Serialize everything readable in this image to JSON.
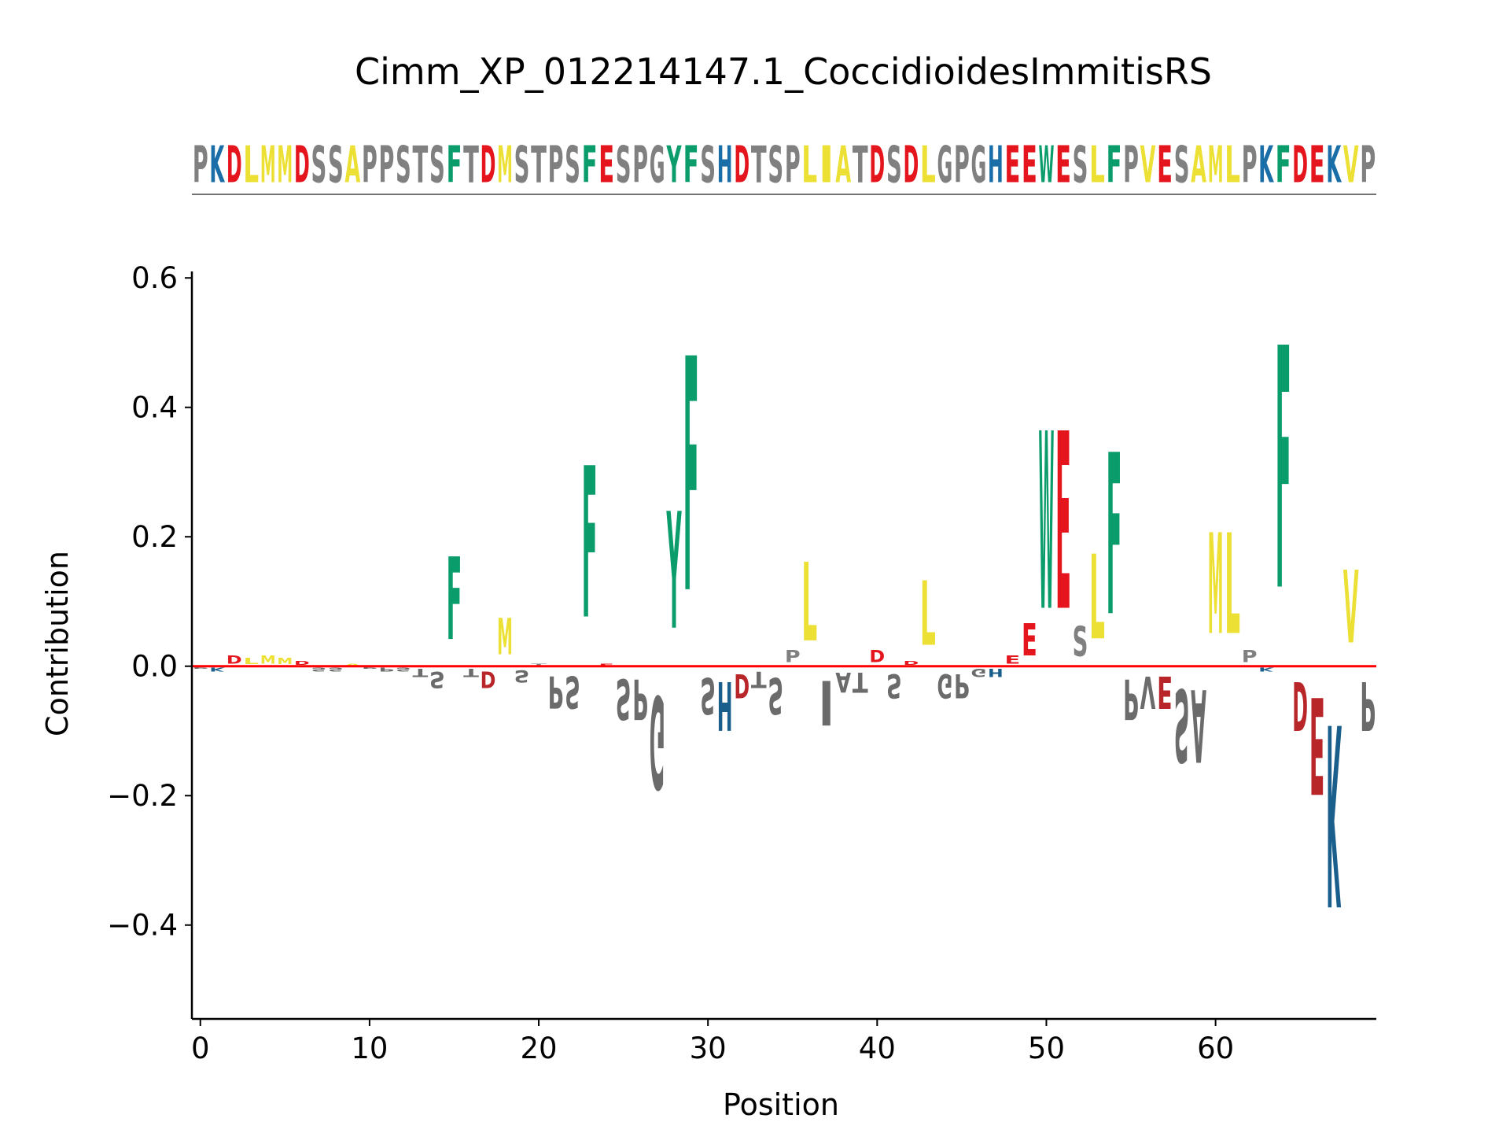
{
  "colors": {
    "D": "#e4151d",
    "E": "#e4151d",
    "K": "#1a6ea8",
    "H": "#1a6ea8",
    "R": "#1a6ea8",
    "F": "#0b9c6c",
    "W": "#0b9c6c",
    "Y": "#0b9c6c",
    "L": "#ede035",
    "M": "#ede035",
    "I": "#ede035",
    "V": "#ede035",
    "A": "#ede035",
    "default": "#808080",
    "negative_D": "#b8262a",
    "negative_E": "#b8262a",
    "negative_K": "#1a5f8c",
    "negative_H": "#1a5f8c",
    "negative_default": "#6b6b6b",
    "baseline": "#ff0000"
  },
  "chart_data": {
    "type": "sequence-logo",
    "title": "Cimm_XP_012214147.1_CoccidioidesImmitisRS",
    "sequence": "PKDLMMDSSAPPSTSFTDMSTPSFESPGYFSHDTSPLIATDSDLGPGHEEWESLFPVESAMLPKFDEKVP",
    "xlabel": "Position",
    "ylabel": "Contribution",
    "xlim": [
      -0.5,
      69.5
    ],
    "ylim": [
      -0.545,
      0.61
    ],
    "xticks": [
      0,
      10,
      20,
      30,
      40,
      50,
      60
    ],
    "yticks": [
      -0.4,
      -0.2,
      0.0,
      0.2,
      0.4,
      0.6
    ],
    "ytick_labels": [
      "−0.4",
      "−0.2",
      "0.0",
      "0.2",
      "0.4",
      "0.6"
    ],
    "contributions": [
      -0.005,
      -0.01,
      0.02,
      0.015,
      0.02,
      0.015,
      0.01,
      -0.01,
      -0.01,
      0.005,
      -0.005,
      -0.01,
      -0.01,
      -0.02,
      -0.04,
      0.205,
      -0.02,
      -0.04,
      0.09,
      -0.03,
      0.005,
      -0.08,
      -0.08,
      0.375,
      0.005,
      -0.1,
      -0.1,
      -0.23,
      0.29,
      0.58,
      -0.09,
      -0.12,
      -0.06,
      -0.04,
      -0.09,
      0.03,
      0.195,
      -0.11,
      -0.05,
      -0.05,
      0.03,
      -0.06,
      0.01,
      0.16,
      -0.06,
      -0.06,
      -0.02,
      -0.02,
      0.02,
      0.08,
      0.44,
      0.44,
      0.075,
      0.21,
      0.4,
      -0.1,
      -0.08,
      -0.08,
      -0.18,
      -0.18,
      0.25,
      0.25,
      0.03,
      -0.01,
      0.6,
      -0.12,
      -0.24,
      -0.45,
      0.18,
      -0.12
    ]
  }
}
